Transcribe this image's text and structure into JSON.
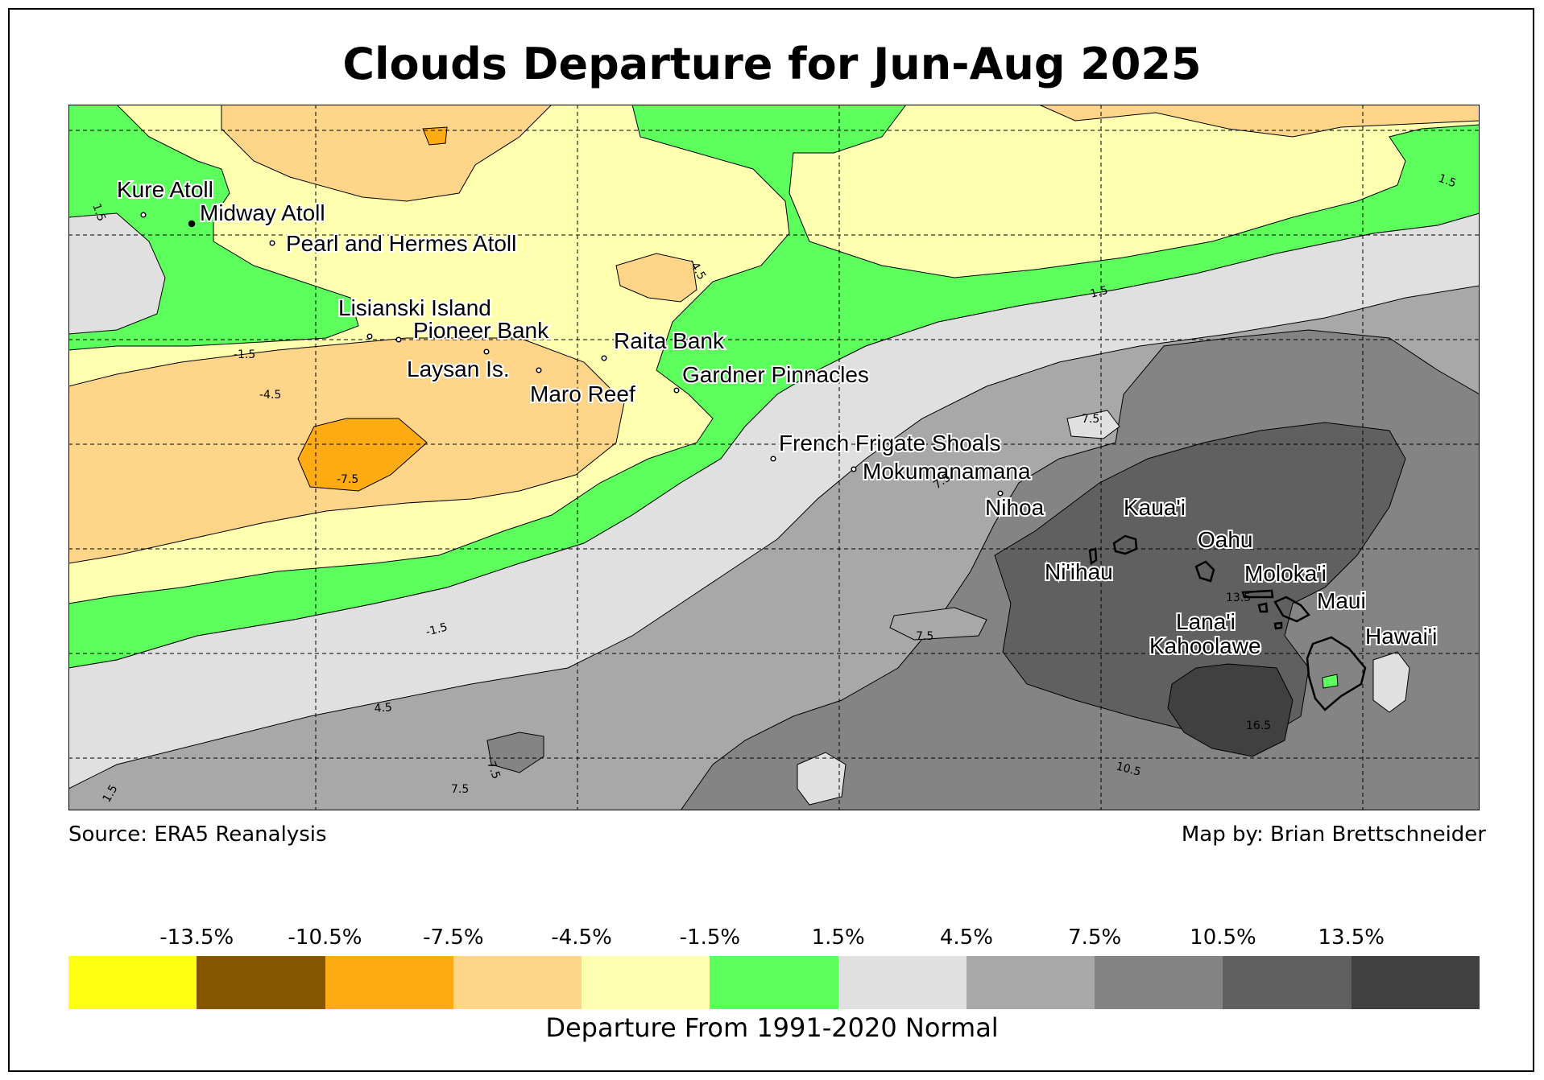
{
  "title": "Clouds Departure for Jun-Aug 2025",
  "source": "Source: ERA5 Reanalysis",
  "credit": "Map by: Brian Brettschneider",
  "legend": {
    "label": "Departure From 1991-2020 Normal",
    "ticks": [
      "-13.5%",
      "-10.5%",
      "-7.5%",
      "-4.5%",
      "-1.5%",
      "1.5%",
      "4.5%",
      "7.5%",
      "10.5%",
      "13.5%"
    ],
    "colors": [
      "#ffff14",
      "#845600",
      "#ffab14",
      "#ffd58a",
      "#ffffb0",
      "#5cff5c",
      "#e0e0e0",
      "#a8a8a8",
      "#848484",
      "#606060",
      "#404040"
    ]
  },
  "places": [
    {
      "name": "Kure Atoll"
    },
    {
      "name": "Midway Atoll"
    },
    {
      "name": "Pearl and Hermes Atoll"
    },
    {
      "name": "Lisianski Island"
    },
    {
      "name": "Pioneer Bank"
    },
    {
      "name": "Raita Bank"
    },
    {
      "name": "Laysan Is."
    },
    {
      "name": "Gardner Pinnacles"
    },
    {
      "name": "Maro Reef"
    },
    {
      "name": "French Frigate Shoals"
    },
    {
      "name": "Mokumanamana"
    },
    {
      "name": "Nihoa"
    },
    {
      "name": "Kaua'i"
    },
    {
      "name": "Oahu"
    },
    {
      "name": "Ni'ihau"
    },
    {
      "name": "Moloka'i"
    },
    {
      "name": "Maui"
    },
    {
      "name": "Lana'i"
    },
    {
      "name": "Kahoolawe"
    },
    {
      "name": "Hawai'i"
    }
  ],
  "contour_labels": [
    "1.5",
    "1.5",
    "1.5",
    "-1.5",
    "-4.5",
    "-4.5",
    "-7.5",
    "-1.5",
    "4.5",
    "7.5",
    "7.5",
    "7.5",
    "7.5",
    "7.5",
    "10.5",
    "13.5",
    "16.5",
    "1.5"
  ]
}
